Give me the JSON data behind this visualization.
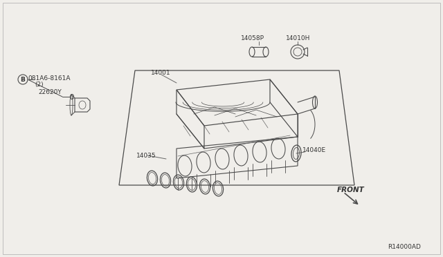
{
  "bg_color": "#f0eeea",
  "line_color": "#4a4a4a",
  "text_color": "#333333",
  "diagram_ref": "R14000AD",
  "fig_width": 6.4,
  "fig_height": 3.72,
  "dpi": 100,
  "labels": {
    "part_b_num": "081A6-8161A",
    "part_b_qty": "(2)",
    "part_22620y": "22620Y",
    "part_14001": "14001",
    "part_14035": "14035",
    "part_14040e": "14040E",
    "part_14058p": "14058P",
    "part_14010h": "14010H",
    "front": "FRONT"
  }
}
